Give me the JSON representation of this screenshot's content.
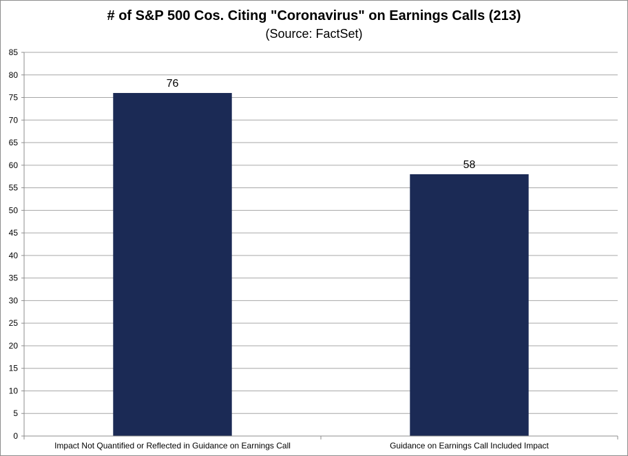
{
  "chart_data": {
    "type": "bar",
    "title": "# of S&P 500 Cos. Citing \"Coronavirus\" on Earnings Calls (213)",
    "subtitle": "(Source: FactSet)",
    "xlabel": "",
    "ylabel": "",
    "categories": [
      "Impact Not Quantified or Reflected in Guidance on Earnings Call",
      "Guidance on Earnings Call Included Impact"
    ],
    "values": [
      76,
      58
    ],
    "data_labels": [
      "76",
      "58"
    ],
    "ylim": [
      0,
      85
    ],
    "yticks": [
      0,
      5,
      10,
      15,
      20,
      25,
      30,
      35,
      40,
      45,
      50,
      55,
      60,
      65,
      70,
      75,
      80,
      85
    ],
    "ytick_labels": [
      "0",
      "5",
      "10",
      "15",
      "20",
      "25",
      "30",
      "35",
      "40",
      "45",
      "50",
      "55",
      "60",
      "65",
      "70",
      "75",
      "80",
      "85"
    ],
    "grid": true,
    "legend": "none",
    "colors": {
      "bar": "#1b2a55",
      "grid": "#a6a6a6",
      "axis": "#8c8c8c"
    }
  }
}
